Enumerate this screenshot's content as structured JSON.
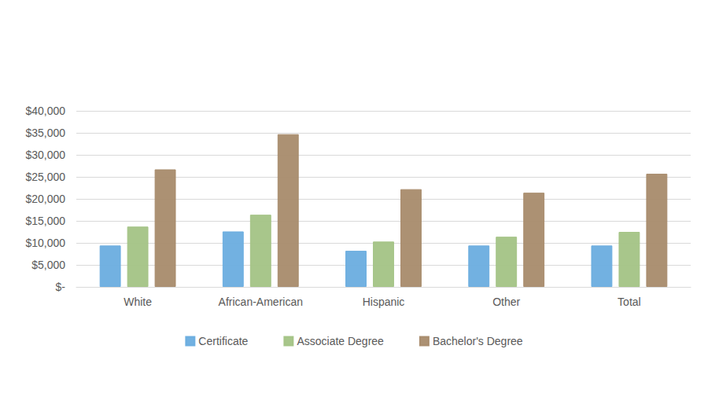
{
  "chart_data": {
    "type": "bar",
    "categories": [
      "White",
      "African-American",
      "Hispanic",
      "Other",
      "Total"
    ],
    "series": [
      {
        "name": "Certificate",
        "color": "#6aaddf",
        "values": [
          9400,
          12600,
          8200,
          9400,
          9400
        ]
      },
      {
        "name": "Associate Degree",
        "color": "#a3c385",
        "values": [
          13700,
          16400,
          10300,
          11400,
          12500
        ]
      },
      {
        "name": "Bachelor's Degree",
        "color": "#a88b6c",
        "values": [
          26700,
          34700,
          22200,
          21400,
          25700
        ]
      }
    ],
    "ylim": [
      0,
      40000
    ],
    "yticks": [
      {
        "value": 0,
        "label": "$-"
      },
      {
        "value": 5000,
        "label": "$5,000"
      },
      {
        "value": 10000,
        "label": "$10,000"
      },
      {
        "value": 15000,
        "label": "$15,000"
      },
      {
        "value": 20000,
        "label": "$20,000"
      },
      {
        "value": 25000,
        "label": "$25,000"
      },
      {
        "value": 30000,
        "label": "$30,000"
      },
      {
        "value": 35000,
        "label": "$35,000"
      },
      {
        "value": 40000,
        "label": "$40,000"
      }
    ],
    "grid": true,
    "legend": "bottom"
  }
}
